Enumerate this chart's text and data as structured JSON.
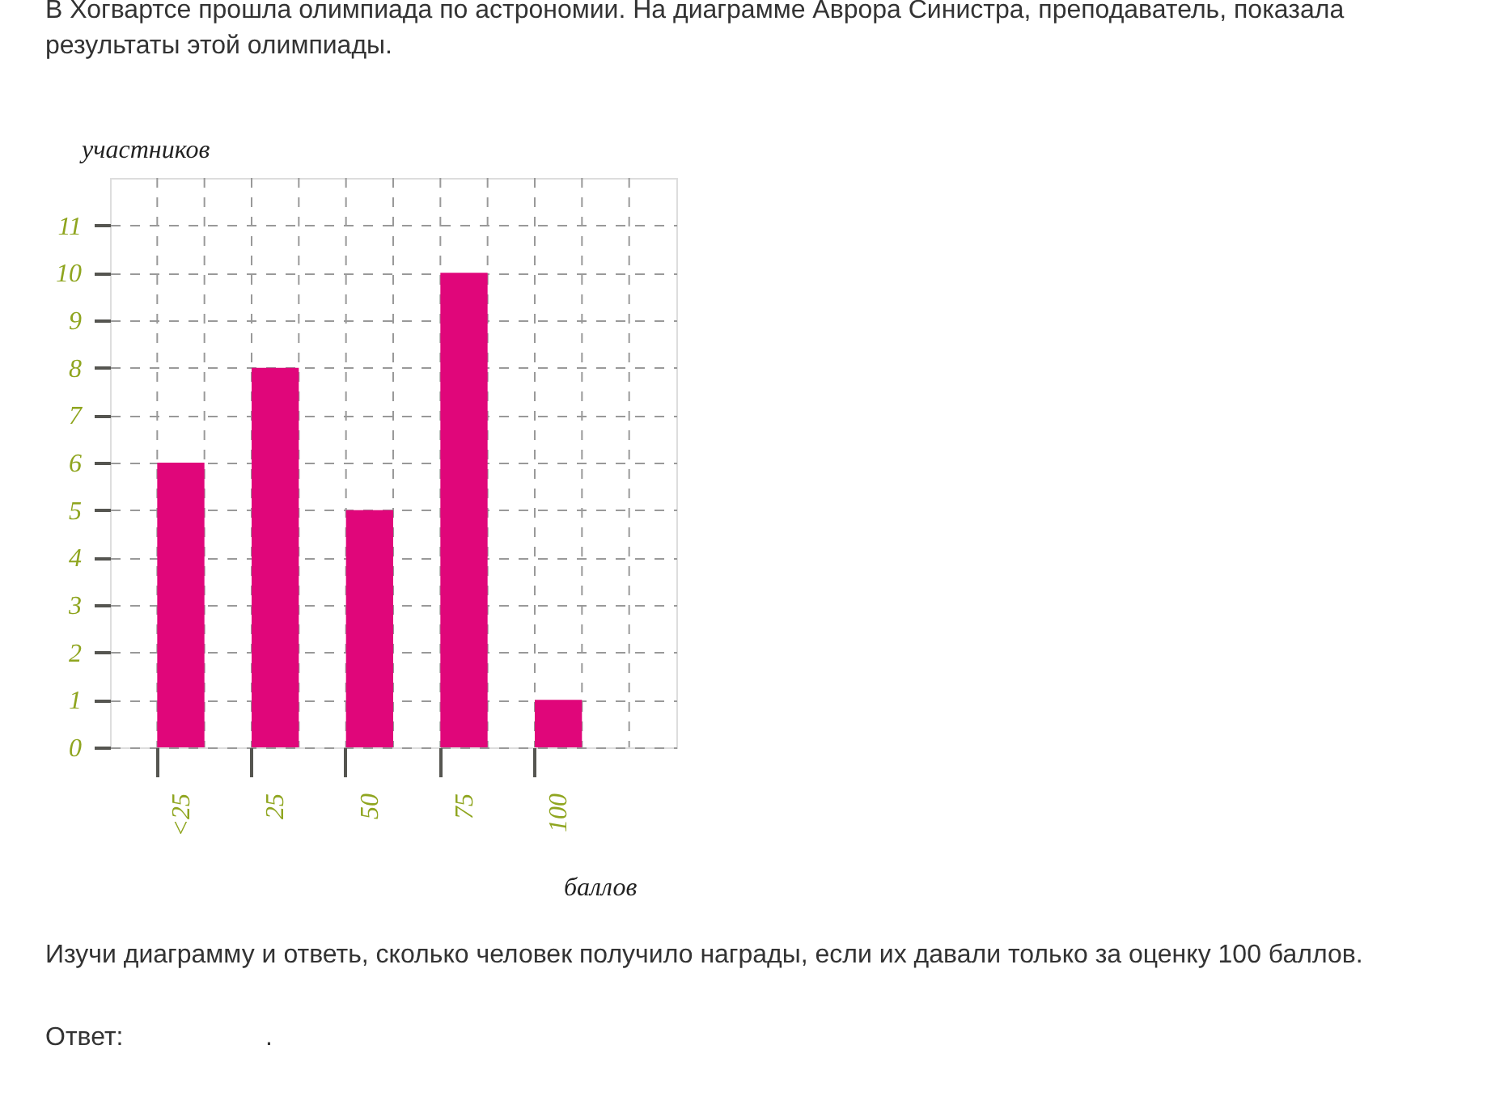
{
  "chart_data": {
    "type": "bar",
    "title": "В Хогвартсе прошла олимпиада по астрономии. На диаграмме Аврора Синистра, преподаватель, показала результаты этой олимпиады.",
    "xlabel": "баллов",
    "ylabel": "участников",
    "categories": [
      "<25",
      "25",
      "50",
      "75",
      "100"
    ],
    "values": [
      6,
      8,
      5,
      10,
      1
    ],
    "color": "#e0067a",
    "ylim": [
      0,
      12
    ],
    "yticks": [
      0,
      1,
      2,
      3,
      4,
      5,
      6,
      7,
      8,
      9,
      10,
      11
    ],
    "grid": true,
    "annotations": [
      "Изучи диаграмму и ответь, сколько человек получило награды, если их давали только за оценку 100 баллов.",
      "Ответ:",
      "."
    ]
  }
}
